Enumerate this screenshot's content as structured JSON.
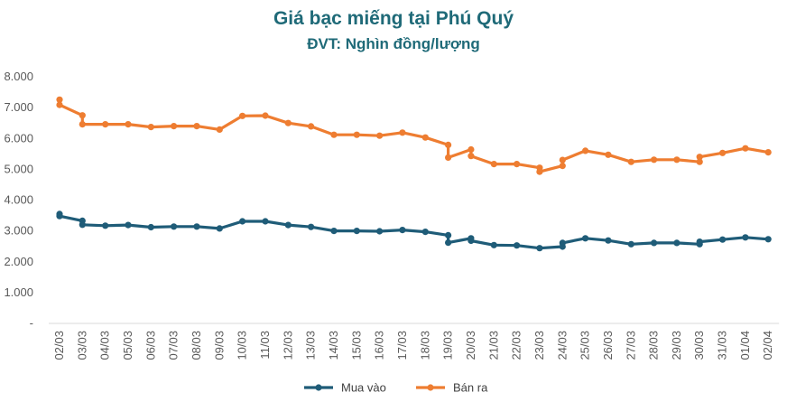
{
  "title": "Giá bạc miếng tại Phú Quý",
  "subtitle": "ĐVT: Nghìn đồng/lượng",
  "chart_data": {
    "type": "line",
    "title": "Giá bạc miếng tại Phú Quý",
    "subtitle": "ĐVT: Nghìn đồng/lượng",
    "xlabel": "",
    "ylabel": "",
    "ylim": [
      0,
      8000
    ],
    "yticks": [
      "-",
      "1.000",
      "2.000",
      "3.000",
      "4.000",
      "5.000",
      "6.000",
      "7.000",
      "8.000"
    ],
    "categories": [
      "02/03",
      "03/03",
      "04/03",
      "05/03",
      "06/03",
      "07/03",
      "08/03",
      "09/03",
      "10/03",
      "11/03",
      "12/03",
      "13/03",
      "14/03",
      "15/03",
      "16/03",
      "17/03",
      "18/03",
      "19/03",
      "20/03",
      "21/03",
      "22/03",
      "23/03",
      "24/03",
      "25/03",
      "26/03",
      "27/03",
      "28/03",
      "29/03",
      "30/03",
      "31/03",
      "01/04",
      "02/04"
    ],
    "grid": false,
    "legend": "bottom",
    "series": [
      {
        "name": "Mua vào",
        "color": "#1f5c78",
        "points": [
          [
            0,
            3550
          ],
          [
            0,
            3480
          ],
          [
            1,
            3330
          ],
          [
            1,
            3200
          ],
          [
            2,
            3170
          ],
          [
            3,
            3190
          ],
          [
            4,
            3120
          ],
          [
            5,
            3140
          ],
          [
            6,
            3140
          ],
          [
            7,
            3080
          ],
          [
            8,
            3310
          ],
          [
            9,
            3310
          ],
          [
            10,
            3190
          ],
          [
            11,
            3130
          ],
          [
            12,
            3000
          ],
          [
            13,
            3000
          ],
          [
            14,
            2990
          ],
          [
            15,
            3030
          ],
          [
            16,
            2970
          ],
          [
            17,
            2860
          ],
          [
            17,
            2620
          ],
          [
            18,
            2760
          ],
          [
            18,
            2680
          ],
          [
            19,
            2540
          ],
          [
            20,
            2530
          ],
          [
            21,
            2440
          ],
          [
            22,
            2490
          ],
          [
            22,
            2610
          ],
          [
            23,
            2760
          ],
          [
            24,
            2690
          ],
          [
            25,
            2570
          ],
          [
            26,
            2610
          ],
          [
            27,
            2610
          ],
          [
            28,
            2570
          ],
          [
            28,
            2650
          ],
          [
            29,
            2720
          ],
          [
            30,
            2790
          ],
          [
            31,
            2730
          ]
        ]
      },
      {
        "name": "Bán ra",
        "color": "#ee7d31",
        "points": [
          [
            0,
            7260
          ],
          [
            0,
            7090
          ],
          [
            1,
            6750
          ],
          [
            1,
            6460
          ],
          [
            2,
            6460
          ],
          [
            3,
            6460
          ],
          [
            4,
            6370
          ],
          [
            5,
            6400
          ],
          [
            6,
            6400
          ],
          [
            7,
            6290
          ],
          [
            8,
            6730
          ],
          [
            9,
            6740
          ],
          [
            10,
            6500
          ],
          [
            11,
            6390
          ],
          [
            12,
            6120
          ],
          [
            13,
            6120
          ],
          [
            14,
            6090
          ],
          [
            15,
            6190
          ],
          [
            16,
            6030
          ],
          [
            17,
            5790
          ],
          [
            17,
            5380
          ],
          [
            18,
            5640
          ],
          [
            18,
            5430
          ],
          [
            19,
            5170
          ],
          [
            20,
            5170
          ],
          [
            21,
            5050
          ],
          [
            21,
            4920
          ],
          [
            22,
            5110
          ],
          [
            22,
            5300
          ],
          [
            23,
            5600
          ],
          [
            24,
            5470
          ],
          [
            25,
            5240
          ],
          [
            26,
            5310
          ],
          [
            27,
            5310
          ],
          [
            28,
            5240
          ],
          [
            28,
            5400
          ],
          [
            29,
            5530
          ],
          [
            30,
            5680
          ],
          [
            31,
            5550
          ]
        ]
      }
    ]
  }
}
